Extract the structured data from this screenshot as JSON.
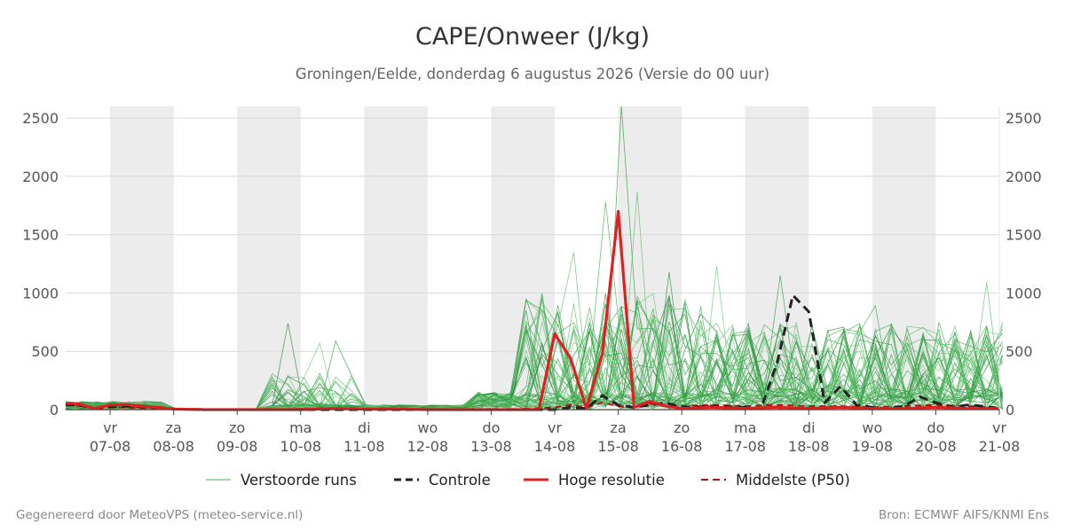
{
  "chart_data": {
    "type": "line",
    "title": "CAPE/Onweer (J/kg)",
    "subtitle": "Groningen/Eelde, donderdag  6 augustus 2026 (Versie do 00 uur)",
    "ylim": [
      0,
      2600
    ],
    "y_ticks": [
      0,
      500,
      1000,
      1500,
      2000,
      2500
    ],
    "x_day_range": [
      6.3,
      21.0
    ],
    "x_ticks": [
      {
        "day": 7,
        "weekday": "vr",
        "date": "07-08"
      },
      {
        "day": 8,
        "weekday": "za",
        "date": "08-08"
      },
      {
        "day": 9,
        "weekday": "zo",
        "date": "09-08"
      },
      {
        "day": 10,
        "weekday": "ma",
        "date": "10-08"
      },
      {
        "day": 11,
        "weekday": "di",
        "date": "11-08"
      },
      {
        "day": 12,
        "weekday": "wo",
        "date": "12-08"
      },
      {
        "day": 13,
        "weekday": "do",
        "date": "13-08"
      },
      {
        "day": 14,
        "weekday": "vr",
        "date": "14-08"
      },
      {
        "day": 15,
        "weekday": "za",
        "date": "15-08"
      },
      {
        "day": 16,
        "weekday": "zo",
        "date": "16-08"
      },
      {
        "day": 17,
        "weekday": "ma",
        "date": "17-08"
      },
      {
        "day": 18,
        "weekday": "di",
        "date": "18-08"
      },
      {
        "day": 19,
        "weekday": "wo",
        "date": "19-08"
      },
      {
        "day": 20,
        "weekday": "do",
        "date": "20-08"
      },
      {
        "day": 21,
        "weekday": "vr",
        "date": "21-08"
      }
    ],
    "weekend_bands": [
      [
        7,
        8
      ],
      [
        9,
        10
      ],
      [
        11,
        12
      ],
      [
        13,
        14
      ],
      [
        15,
        16
      ],
      [
        17,
        18
      ],
      [
        19,
        20
      ]
    ],
    "grid": true,
    "legend_position": "bottom-center",
    "legend": [
      {
        "label": "Verstoorde runs",
        "color": "#4caf50",
        "style": "thin"
      },
      {
        "label": "Controle",
        "color": "#222222",
        "style": "dashed"
      },
      {
        "label": "Hoge resolutie",
        "color": "#e02020",
        "style": "solid"
      },
      {
        "label": "Middelste (P50)",
        "color": "#aa1111",
        "style": "dashed"
      }
    ],
    "ensemble_member_count": 50,
    "ensemble_highlights": [
      {
        "day": 15.0,
        "value": 2600
      },
      {
        "day": 14.75,
        "value": 1780
      },
      {
        "day": 15.25,
        "value": 1870
      },
      {
        "day": 15.75,
        "value": 1180
      },
      {
        "day": 16.5,
        "value": 1230
      },
      {
        "day": 17.5,
        "value": 1150
      },
      {
        "day": 19.0,
        "value": 890
      },
      {
        "day": 20.75,
        "value": 1090
      },
      {
        "day": 9.75,
        "value": 740
      },
      {
        "day": 10.25,
        "value": 570
      },
      {
        "day": 10.5,
        "value": 590
      },
      {
        "day": 13.75,
        "value": 1000
      },
      {
        "day": 14.25,
        "value": 1350
      }
    ],
    "series": [
      {
        "name": "Controle",
        "color": "#222222",
        "x": [
          6.3,
          6.5,
          6.75,
          7.0,
          7.25,
          7.5,
          7.75,
          8.0,
          8.5,
          9.0,
          9.5,
          10.0,
          10.5,
          11.0,
          11.5,
          12.0,
          12.5,
          13.0,
          13.5,
          14.0,
          14.25,
          14.5,
          14.75,
          15.0,
          15.25,
          15.5,
          15.75,
          16.0,
          16.5,
          17.0,
          17.25,
          17.5,
          17.75,
          18.0,
          18.25,
          18.5,
          18.75,
          19.0,
          19.25,
          19.5,
          19.75,
          20.0,
          20.25,
          20.5,
          20.75,
          21.0
        ],
        "values": [
          40,
          40,
          10,
          25,
          30,
          25,
          20,
          5,
          0,
          0,
          0,
          0,
          0,
          0,
          0,
          0,
          0,
          0,
          0,
          0,
          20,
          10,
          120,
          40,
          20,
          40,
          60,
          20,
          30,
          20,
          10,
          400,
          980,
          840,
          60,
          200,
          40,
          20,
          10,
          30,
          110,
          60,
          20,
          40,
          30,
          10
        ]
      },
      {
        "name": "Hoge resolutie",
        "color": "#e02020",
        "x": [
          6.3,
          6.5,
          6.75,
          7.0,
          7.25,
          7.5,
          7.75,
          8.0,
          8.5,
          9.0,
          9.5,
          10.0,
          10.5,
          11.0,
          11.5,
          12.0,
          12.5,
          13.0,
          13.5,
          13.75,
          14.0,
          14.25,
          14.5,
          14.75,
          15.0,
          15.25,
          15.5,
          15.75,
          16.0,
          16.5,
          17.0,
          17.5,
          18.0,
          18.5,
          19.0,
          19.5,
          20.0,
          20.5,
          21.0
        ],
        "values": [
          55,
          50,
          10,
          40,
          45,
          30,
          20,
          5,
          0,
          0,
          0,
          0,
          10,
          5,
          5,
          0,
          0,
          0,
          0,
          0,
          650,
          440,
          10,
          480,
          1700,
          20,
          70,
          30,
          10,
          20,
          10,
          20,
          10,
          20,
          10,
          10,
          20,
          10,
          10
        ]
      },
      {
        "name": "Middelste (P50)",
        "color": "#aa1111",
        "x": [
          6.3,
          6.5,
          6.75,
          7.0,
          7.5,
          8.0,
          8.5,
          9.0,
          10.0,
          11.0,
          12.0,
          13.0,
          13.5,
          14.0,
          14.25,
          14.5,
          14.75,
          15.0,
          15.25,
          15.5,
          15.75,
          16.0,
          16.5,
          17.0,
          17.5,
          18.0,
          18.5,
          19.0,
          19.5,
          20.0,
          20.5,
          21.0
        ],
        "values": [
          40,
          35,
          10,
          20,
          15,
          5,
          0,
          0,
          5,
          5,
          0,
          0,
          5,
          20,
          40,
          20,
          60,
          30,
          20,
          50,
          40,
          30,
          40,
          30,
          40,
          30,
          30,
          20,
          30,
          40,
          30,
          20
        ]
      }
    ],
    "footer_left": "Gegenereerd door MeteoVPS (meteo-service.nl)",
    "footer_right": "Bron: ECMWF AIFS/KNMI Ens"
  }
}
